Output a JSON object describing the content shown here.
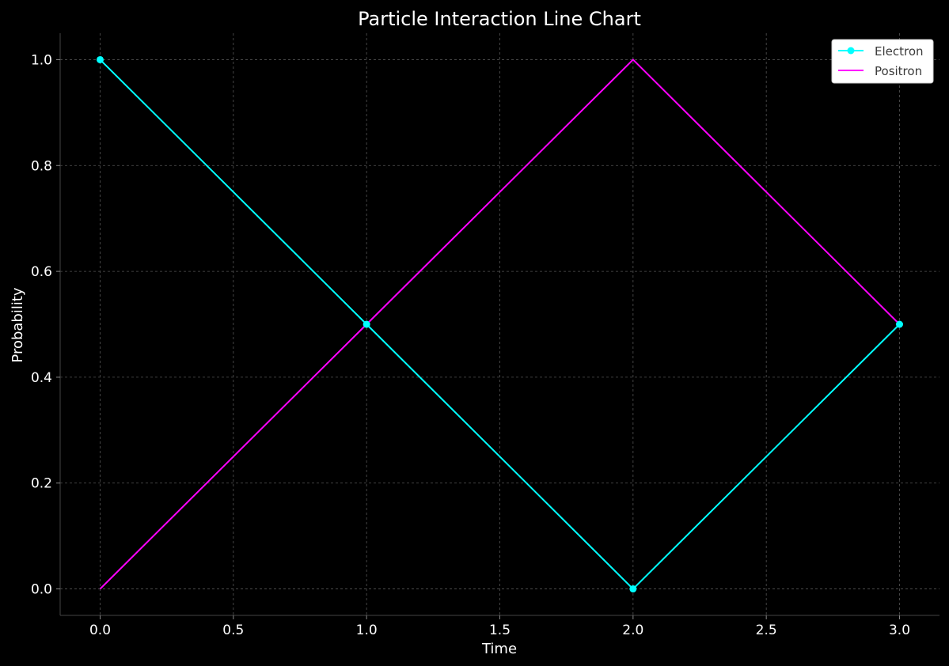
{
  "chart_data": {
    "type": "line",
    "title": "Particle Interaction Line Chart",
    "xlabel": "Time",
    "ylabel": "Probability",
    "x": [
      0,
      1,
      2,
      3
    ],
    "xlim": [
      -0.15,
      3.15
    ],
    "ylim": [
      -0.05,
      1.05
    ],
    "xticks": [
      0.0,
      0.5,
      1.0,
      1.5,
      2.0,
      2.5,
      3.0
    ],
    "xtick_labels": [
      "0.0",
      "0.5",
      "1.0",
      "1.5",
      "2.0",
      "2.5",
      "3.0"
    ],
    "yticks": [
      0.0,
      0.2,
      0.4,
      0.6,
      0.8,
      1.0
    ],
    "ytick_labels": [
      "0.0",
      "0.2",
      "0.4",
      "0.6",
      "0.8",
      "1.0"
    ],
    "grid": true,
    "legend_position": "top-right",
    "series": [
      {
        "name": "Electron",
        "values": [
          1.0,
          0.5,
          0.0,
          0.5
        ],
        "color": "#00ffff",
        "markers": true
      },
      {
        "name": "Positron",
        "values": [
          0.0,
          0.5,
          1.0,
          0.5
        ],
        "color": "#ff00ff",
        "markers": false
      }
    ],
    "background_color": "#000000",
    "grid_color": "#555555"
  }
}
